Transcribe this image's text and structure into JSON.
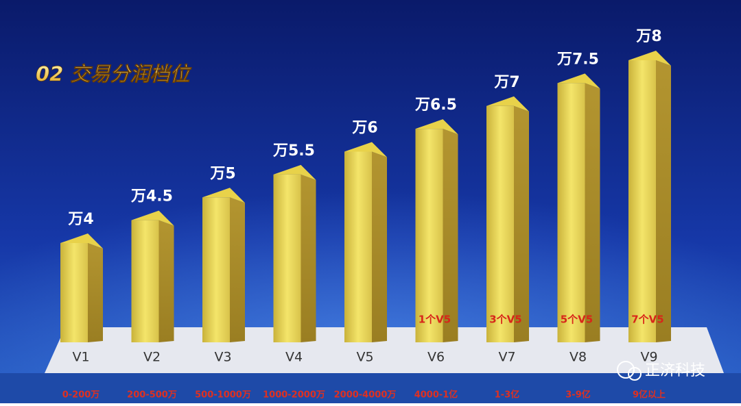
{
  "chart_data": {
    "type": "bar3d",
    "title": "02 交易分润档位",
    "categories": [
      "V1",
      "V2",
      "V3",
      "V4",
      "V5",
      "V6",
      "V7",
      "V8",
      "V9"
    ],
    "values": [
      4,
      4.5,
      5,
      5.5,
      6,
      6.5,
      7,
      7.5,
      8
    ],
    "value_labels": [
      "万4",
      "万4.5",
      "万5",
      "万5.5",
      "万6",
      "万6.5",
      "万7",
      "万7.5",
      "万8"
    ],
    "ranges": [
      "0-200万",
      "200-500万",
      "500-1000万",
      "1000-2000万",
      "2000-4000万",
      "4000-1亿",
      "1-3亿",
      "3-9亿",
      "9亿以上"
    ],
    "requirements": [
      null,
      null,
      null,
      null,
      null,
      "1个V5",
      "3个V5",
      "5个V5",
      "7个V5"
    ],
    "color": "#e8d24a"
  },
  "watermark": "正济科技"
}
